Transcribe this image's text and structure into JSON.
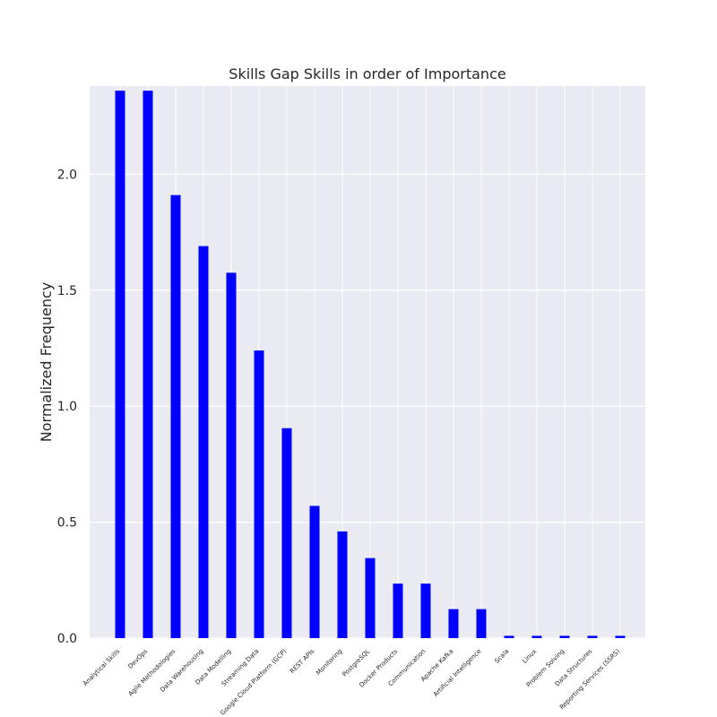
{
  "chart_data": {
    "type": "bar",
    "title": "Skills Gap Skills in order of Importance",
    "xlabel": "",
    "ylabel": "Normalized Frequency",
    "ylim": [
      0,
      2.38
    ],
    "yticks": [
      0.0,
      0.5,
      1.0,
      1.5,
      2.0
    ],
    "ytick_labels": [
      "0.0",
      "0.5",
      "1.0",
      "1.5",
      "2.0"
    ],
    "grid": true,
    "bar_color": "#0000ff",
    "background_color": "#eaeaf2",
    "grid_color": "#ffffff",
    "categories": [
      "Analytical Skills",
      "DevOps",
      "Agile Methodologies",
      "Data Warehousing",
      "Data Modelling",
      "Streaming Data",
      "Google Cloud Platform (GCP)",
      "REST APIs",
      "Monitoring",
      "PostgreSQL",
      "Docker Products",
      "Communication",
      "Apache Kafka",
      "Artificial Intelligence",
      "Scala",
      "Linux",
      "Problem Solving",
      "Data Structures",
      "Reporting Services (SSRS)"
    ],
    "values": [
      2.36,
      2.36,
      1.91,
      1.69,
      1.575,
      1.24,
      0.905,
      0.57,
      0.46,
      0.345,
      0.235,
      0.235,
      0.125,
      0.125,
      0.01,
      0.01,
      0.01,
      0.01,
      0.01
    ]
  }
}
